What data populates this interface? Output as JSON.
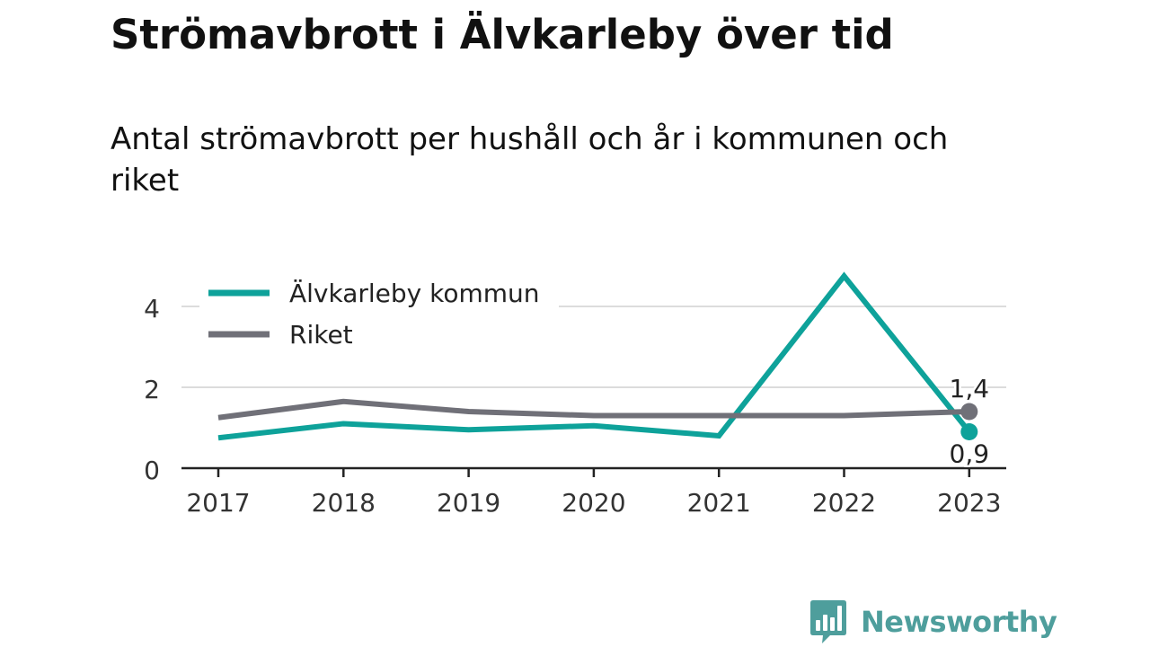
{
  "title": "Strömavbrott i Älvkarleby över tid",
  "subtitle": "Antal strömavbrott per hushåll och år i kommunen och riket",
  "brand": {
    "name": "Newsworthy",
    "color": "#4e9e9c",
    "icon": "bar-chart-speech-bubble-icon"
  },
  "chart_data": {
    "type": "line",
    "title": "Strömavbrott i Älvkarleby över tid",
    "subtitle": "Antal strömavbrott per hushåll och år i kommunen och riket",
    "xlabel": "",
    "ylabel": "",
    "categories": [
      "2017",
      "2018",
      "2019",
      "2020",
      "2021",
      "2022",
      "2023"
    ],
    "ylim": [
      0,
      5
    ],
    "yticks": [
      0,
      2,
      4
    ],
    "ytick_labels": [
      "0",
      "2",
      "4"
    ],
    "grid": "horizontal",
    "legend": "top-left",
    "series": [
      {
        "name": "Älvkarleby kommun",
        "color": "#0ea29a",
        "values": [
          0.75,
          1.1,
          0.95,
          1.05,
          0.8,
          4.75,
          0.9
        ],
        "end_label": "0,9"
      },
      {
        "name": "Riket",
        "color": "#707078",
        "values": [
          1.25,
          1.65,
          1.4,
          1.3,
          1.3,
          1.3,
          1.4
        ],
        "end_label": "1,4"
      }
    ]
  }
}
